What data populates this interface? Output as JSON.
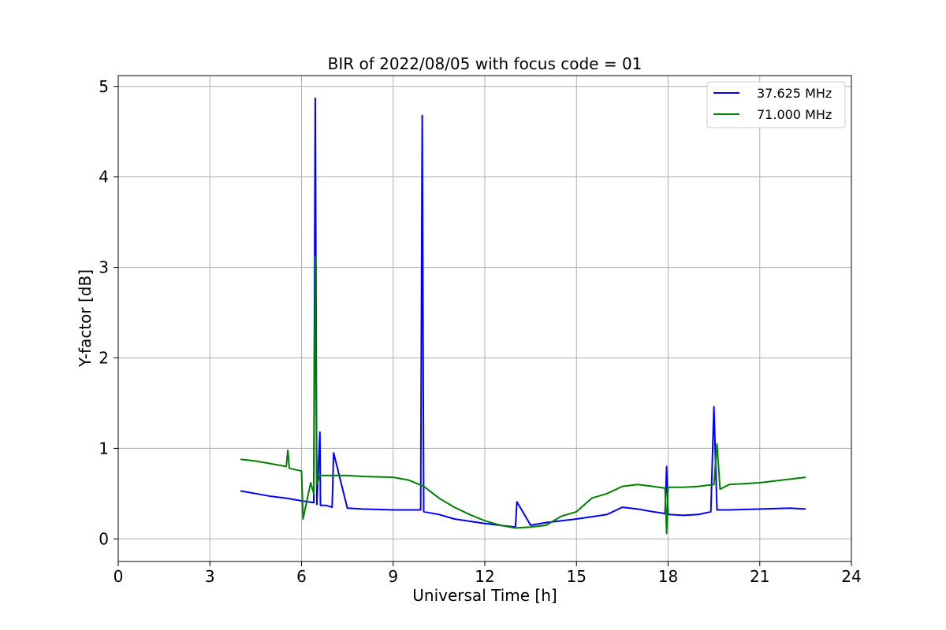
{
  "chart_data": {
    "type": "line",
    "title": "BIR of 2022/08/05 with focus code = 01",
    "xlabel": "Universal Time [h]",
    "ylabel": "Y-factor [dB]",
    "xlim": [
      0,
      24
    ],
    "ylim": [
      -0.25,
      5.12
    ],
    "xticks": [
      0,
      3,
      6,
      9,
      12,
      15,
      18,
      21,
      24
    ],
    "yticks": [
      0,
      1,
      2,
      3,
      4,
      5
    ],
    "grid": true,
    "legend_position": "upper right",
    "series": [
      {
        "name": "37.625 MHz",
        "color": "#0000ff",
        "x": [
          4.0,
          4.5,
          5.0,
          5.5,
          6.0,
          6.4,
          6.45,
          6.5,
          6.6,
          6.62,
          6.8,
          7.0,
          7.05,
          7.5,
          8.0,
          9.0,
          9.9,
          9.95,
          10.0,
          10.5,
          11.0,
          12.0,
          13.0,
          13.05,
          13.5,
          14.0,
          15.0,
          16.0,
          16.5,
          17.0,
          17.5,
          17.9,
          17.95,
          18.0,
          18.5,
          19.0,
          19.4,
          19.5,
          19.6,
          20.0,
          21.0,
          22.0,
          22.5
        ],
        "y": [
          0.53,
          0.5,
          0.47,
          0.45,
          0.42,
          0.4,
          4.87,
          0.38,
          1.18,
          0.37,
          0.37,
          0.35,
          0.95,
          0.34,
          0.33,
          0.32,
          0.32,
          4.68,
          0.3,
          0.27,
          0.22,
          0.17,
          0.13,
          0.41,
          0.15,
          0.18,
          0.22,
          0.27,
          0.35,
          0.33,
          0.3,
          0.28,
          0.8,
          0.27,
          0.26,
          0.27,
          0.3,
          1.46,
          0.32,
          0.32,
          0.33,
          0.34,
          0.33
        ]
      },
      {
        "name": "71.000 MHz",
        "color": "#008000",
        "x": [
          4.0,
          4.5,
          5.0,
          5.5,
          5.55,
          5.6,
          6.0,
          6.05,
          6.3,
          6.4,
          6.45,
          6.5,
          6.6,
          7.0,
          7.5,
          8.0,
          9.0,
          9.5,
          10.0,
          10.5,
          11.0,
          11.5,
          12.0,
          12.5,
          13.0,
          13.5,
          14.0,
          14.5,
          15.0,
          15.5,
          16.0,
          16.5,
          17.0,
          17.5,
          17.9,
          17.95,
          18.0,
          18.5,
          19.0,
          19.5,
          19.6,
          19.7,
          20.0,
          21.0,
          22.0,
          22.5
        ],
        "y": [
          0.88,
          0.86,
          0.83,
          0.8,
          0.98,
          0.78,
          0.75,
          0.22,
          0.62,
          0.5,
          3.12,
          0.6,
          0.7,
          0.7,
          0.7,
          0.69,
          0.68,
          0.65,
          0.58,
          0.45,
          0.35,
          0.27,
          0.2,
          0.15,
          0.12,
          0.13,
          0.15,
          0.25,
          0.3,
          0.45,
          0.5,
          0.58,
          0.6,
          0.58,
          0.56,
          0.06,
          0.57,
          0.57,
          0.58,
          0.6,
          1.05,
          0.55,
          0.6,
          0.62,
          0.66,
          0.68
        ]
      }
    ]
  }
}
